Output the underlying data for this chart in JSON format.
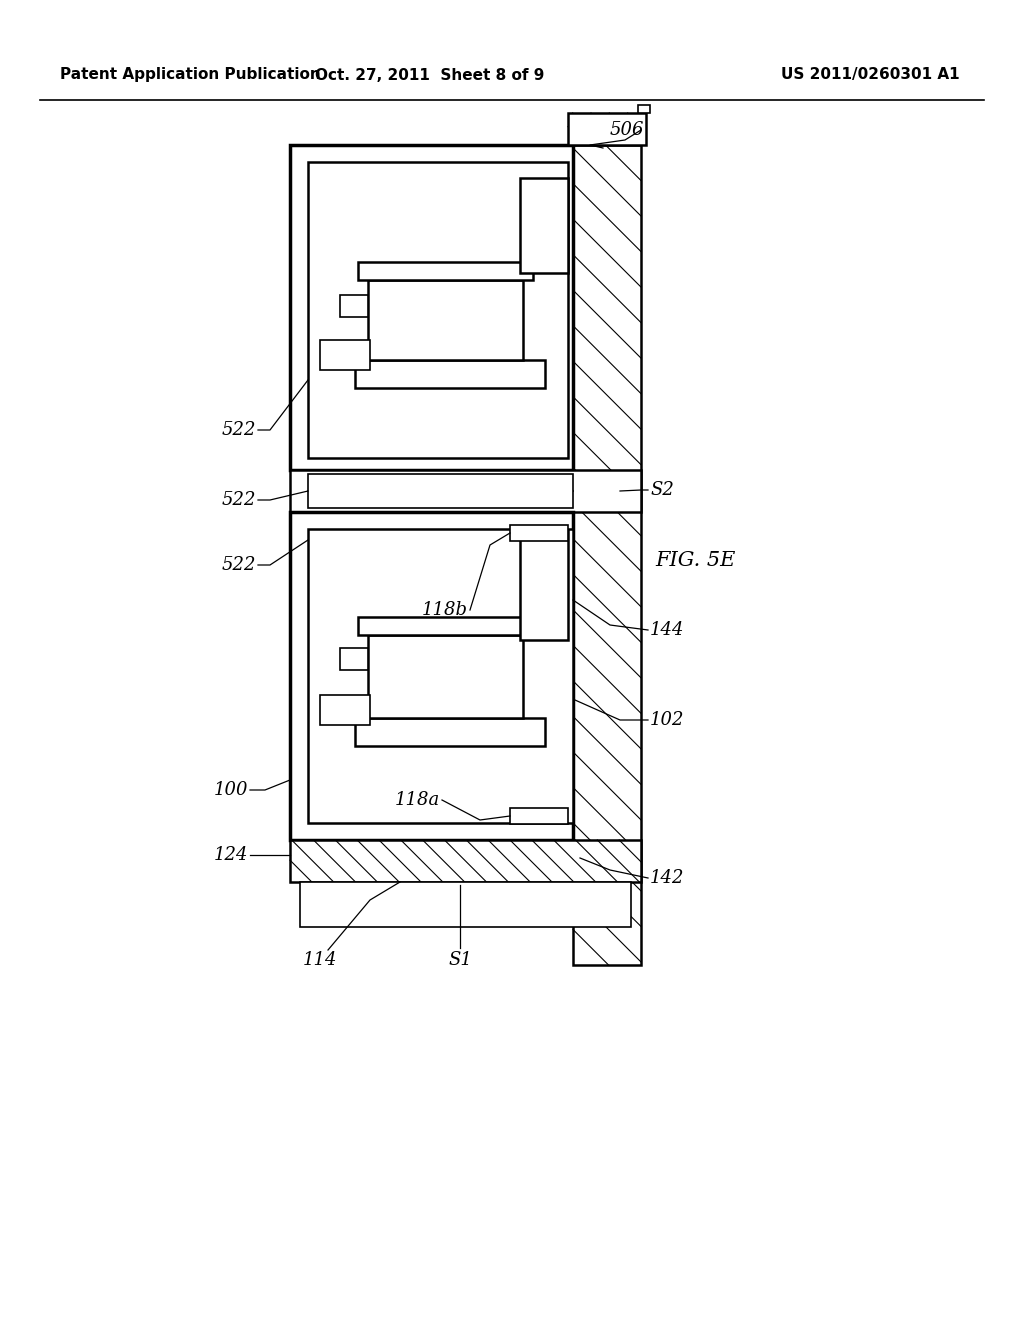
{
  "bg_color": "#ffffff",
  "header_left": "Patent Application Publication",
  "header_mid": "Oct. 27, 2011  Sheet 8 of 9",
  "header_right": "US 2011/0260301 A1",
  "fig_label": "FIG. 5E"
}
